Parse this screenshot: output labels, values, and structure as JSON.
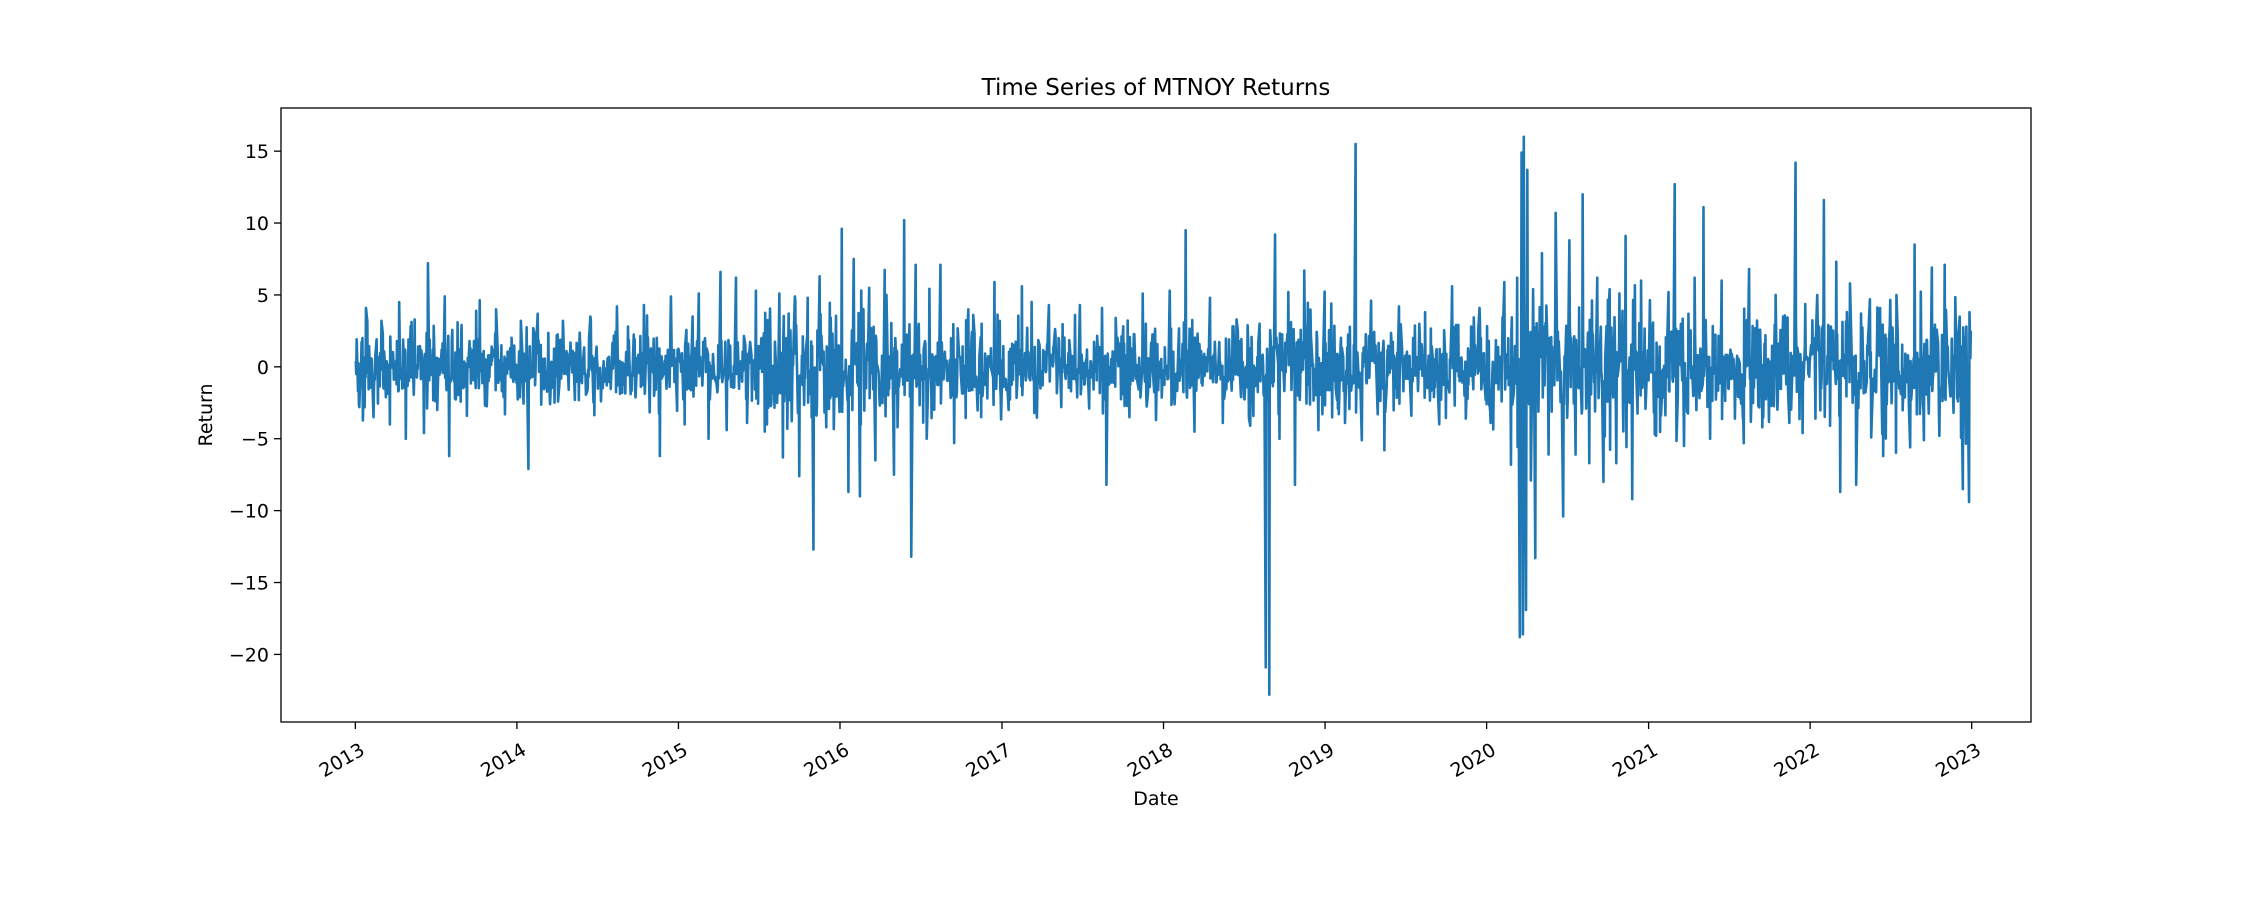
{
  "chart_data": {
    "type": "line",
    "title": "Time Series of MTNOY Returns",
    "xlabel": "Date",
    "ylabel": "Return",
    "xlim": [
      "2012-07-17",
      "2023-05-15"
    ],
    "ylim": [
      -24.7,
      18.0
    ],
    "x_ticks": [
      "2013",
      "2014",
      "2015",
      "2016",
      "2017",
      "2018",
      "2019",
      "2020",
      "2021",
      "2022",
      "2023"
    ],
    "y_ticks": [
      15,
      10,
      5,
      0,
      -5,
      -10,
      -15,
      -20
    ],
    "y_tick_labels": [
      "15",
      "10",
      "5",
      "0",
      "−5",
      "−10",
      "−15",
      "−20"
    ],
    "grid": false,
    "legend": "none",
    "series": [
      {
        "color": "#1f77b4",
        "x_range": [
          "2013-01-02",
          "2022-12-30"
        ],
        "points": [
          [
            "2013-01-02",
            0.4
          ],
          [
            "2013-01-10",
            -2.8
          ],
          [
            "2013-01-25",
            4.1
          ],
          [
            "2013-02-10",
            -3.5
          ],
          [
            "2013-03-01",
            3.2
          ],
          [
            "2013-03-20",
            -4.0
          ],
          [
            "2013-04-10",
            4.5
          ],
          [
            "2013-04-25",
            -5.0
          ],
          [
            "2013-05-15",
            3.3
          ],
          [
            "2013-06-05",
            -4.6
          ],
          [
            "2013-06-14",
            7.2
          ],
          [
            "2013-07-05",
            -3.0
          ],
          [
            "2013-07-20",
            4.9
          ],
          [
            "2013-08-01",
            -6.2
          ],
          [
            "2013-08-20",
            3.1
          ],
          [
            "2013-09-10",
            -3.4
          ],
          [
            "2013-10-01",
            3.9
          ],
          [
            "2013-10-20",
            -2.7
          ],
          [
            "2013-11-15",
            4.0
          ],
          [
            "2013-12-05",
            -3.3
          ],
          [
            "2014-01-10",
            3.2
          ],
          [
            "2014-01-25",
            -7.1
          ],
          [
            "2014-02-15",
            3.7
          ],
          [
            "2014-03-15",
            -2.6
          ],
          [
            "2014-04-15",
            3.2
          ],
          [
            "2014-05-10",
            -2.3
          ],
          [
            "2014-06-15",
            3.5
          ],
          [
            "2014-07-10",
            -2.4
          ],
          [
            "2014-08-15",
            4.2
          ],
          [
            "2014-09-15",
            -1.9
          ],
          [
            "2014-10-15",
            4.3
          ],
          [
            "2014-11-20",
            -6.2
          ],
          [
            "2014-12-15",
            4.9
          ],
          [
            "2015-01-15",
            -4.0
          ],
          [
            "2015-02-15",
            5.1
          ],
          [
            "2015-03-10",
            -5.0
          ],
          [
            "2015-04-05",
            6.6
          ],
          [
            "2015-04-20",
            -4.4
          ],
          [
            "2015-05-10",
            6.2
          ],
          [
            "2015-06-05",
            -3.9
          ],
          [
            "2015-06-25",
            5.3
          ],
          [
            "2015-07-15",
            -4.5
          ],
          [
            "2015-08-15",
            5.1
          ],
          [
            "2015-08-25",
            -6.3
          ],
          [
            "2015-09-20",
            4.9
          ],
          [
            "2015-10-01",
            -7.6
          ],
          [
            "2015-10-20",
            4.8
          ],
          [
            "2015-11-01",
            -12.7
          ],
          [
            "2015-11-15",
            6.3
          ],
          [
            "2015-12-01",
            -4.2
          ],
          [
            "2016-01-05",
            9.6
          ],
          [
            "2016-01-20",
            -8.7
          ],
          [
            "2016-02-01",
            7.5
          ],
          [
            "2016-02-15",
            -9.0
          ],
          [
            "2016-03-05",
            5.5
          ],
          [
            "2016-03-20",
            -6.5
          ],
          [
            "2016-04-15",
            5.0
          ],
          [
            "2016-05-01",
            -7.5
          ],
          [
            "2016-05-25",
            10.2
          ],
          [
            "2016-06-10",
            -13.2
          ],
          [
            "2016-06-20",
            7.1
          ],
          [
            "2016-07-15",
            -5.0
          ],
          [
            "2016-08-15",
            7.1
          ],
          [
            "2016-09-15",
            -5.3
          ],
          [
            "2016-10-15",
            4.0
          ],
          [
            "2016-11-15",
            -3.5
          ],
          [
            "2016-12-15",
            5.9
          ],
          [
            "2017-01-15",
            -3.0
          ],
          [
            "2017-02-15",
            5.6
          ],
          [
            "2017-03-15",
            -3.2
          ],
          [
            "2017-04-15",
            4.3
          ],
          [
            "2017-05-15",
            -2.8
          ],
          [
            "2017-06-15",
            3.6
          ],
          [
            "2017-07-15",
            -2.9
          ],
          [
            "2017-08-15",
            4.1
          ],
          [
            "2017-08-25",
            -8.2
          ],
          [
            "2017-09-15",
            3.4
          ],
          [
            "2017-10-15",
            -3.5
          ],
          [
            "2017-11-15",
            5.1
          ],
          [
            "2017-12-15",
            -3.7
          ],
          [
            "2018-01-15",
            5.3
          ],
          [
            "2018-02-20",
            9.5
          ],
          [
            "2018-03-10",
            -4.5
          ],
          [
            "2018-04-15",
            4.8
          ],
          [
            "2018-05-15",
            -3.9
          ],
          [
            "2018-06-15",
            3.3
          ],
          [
            "2018-07-15",
            -4.1
          ],
          [
            "2018-08-05",
            3.0
          ],
          [
            "2018-08-20",
            -20.9
          ],
          [
            "2018-08-28",
            -22.8
          ],
          [
            "2018-09-10",
            9.2
          ],
          [
            "2018-09-20",
            -5.0
          ],
          [
            "2018-10-10",
            5.2
          ],
          [
            "2018-10-25",
            -8.2
          ],
          [
            "2018-11-15",
            6.7
          ],
          [
            "2018-12-15",
            -4.4
          ],
          [
            "2019-01-15",
            4.4
          ],
          [
            "2019-02-15",
            -3.9
          ],
          [
            "2019-03-10",
            15.5
          ],
          [
            "2019-03-25",
            -5.1
          ],
          [
            "2019-04-15",
            4.6
          ],
          [
            "2019-05-15",
            -5.8
          ],
          [
            "2019-06-15",
            4.2
          ],
          [
            "2019-07-15",
            -3.4
          ],
          [
            "2019-08-15",
            3.8
          ],
          [
            "2019-09-15",
            -4.0
          ],
          [
            "2019-10-15",
            5.6
          ],
          [
            "2019-11-15",
            -3.6
          ],
          [
            "2019-12-15",
            4.1
          ],
          [
            "2020-01-10",
            -3.9
          ],
          [
            "2020-02-10",
            5.9
          ],
          [
            "2020-02-25",
            -6.8
          ],
          [
            "2020-03-10",
            6.2
          ],
          [
            "2020-03-15",
            -18.8
          ],
          [
            "2020-03-20",
            14.9
          ],
          [
            "2020-03-22",
            -18.6
          ],
          [
            "2020-03-25",
            16.0
          ],
          [
            "2020-03-28",
            -16.9
          ],
          [
            "2020-04-02",
            13.7
          ],
          [
            "2020-04-10",
            -7.9
          ],
          [
            "2020-04-15",
            5.4
          ],
          [
            "2020-04-20",
            -13.3
          ],
          [
            "2020-05-05",
            7.9
          ],
          [
            "2020-05-20",
            -6.1
          ],
          [
            "2020-06-05",
            10.7
          ],
          [
            "2020-06-20",
            -10.4
          ],
          [
            "2020-07-05",
            8.8
          ],
          [
            "2020-07-20",
            -6.1
          ],
          [
            "2020-08-05",
            12.0
          ],
          [
            "2020-08-20",
            -6.7
          ],
          [
            "2020-09-05",
            6.2
          ],
          [
            "2020-09-20",
            -8.0
          ],
          [
            "2020-10-05",
            5.4
          ],
          [
            "2020-10-20",
            -6.7
          ],
          [
            "2020-11-10",
            9.1
          ],
          [
            "2020-11-25",
            -9.2
          ],
          [
            "2020-12-15",
            6.0
          ],
          [
            "2021-01-15",
            -4.7
          ],
          [
            "2021-02-15",
            5.2
          ],
          [
            "2021-03-01",
            12.7
          ],
          [
            "2021-03-20",
            -5.5
          ],
          [
            "2021-04-15",
            6.2
          ],
          [
            "2021-05-05",
            11.1
          ],
          [
            "2021-05-20",
            -5.0
          ],
          [
            "2021-06-15",
            6.0
          ],
          [
            "2021-07-15",
            -3.6
          ],
          [
            "2021-08-15",
            6.8
          ],
          [
            "2021-09-15",
            -4.2
          ],
          [
            "2021-10-15",
            5.0
          ],
          [
            "2021-11-15",
            -3.9
          ],
          [
            "2021-11-28",
            14.2
          ],
          [
            "2021-12-15",
            -4.6
          ],
          [
            "2022-01-15",
            5.0
          ],
          [
            "2022-02-01",
            11.6
          ],
          [
            "2022-02-15",
            -4.1
          ],
          [
            "2022-03-01",
            7.3
          ],
          [
            "2022-03-10",
            -8.7
          ],
          [
            "2022-04-01",
            5.8
          ],
          [
            "2022-04-15",
            -8.2
          ],
          [
            "2022-05-15",
            4.7
          ],
          [
            "2022-06-15",
            -6.2
          ],
          [
            "2022-07-15",
            5.0
          ],
          [
            "2022-08-15",
            -5.6
          ],
          [
            "2022-08-25",
            8.5
          ],
          [
            "2022-09-15",
            -5.1
          ],
          [
            "2022-10-01",
            6.9
          ],
          [
            "2022-10-20",
            -4.8
          ],
          [
            "2022-11-01",
            7.1
          ],
          [
            "2022-11-20",
            -3.2
          ],
          [
            "2022-12-05",
            3.5
          ],
          [
            "2022-12-10",
            -8.5
          ],
          [
            "2022-12-20",
            2.8
          ],
          [
            "2022-12-25",
            -9.4
          ],
          [
            "2022-12-30",
            2.5
          ]
        ]
      }
    ]
  }
}
